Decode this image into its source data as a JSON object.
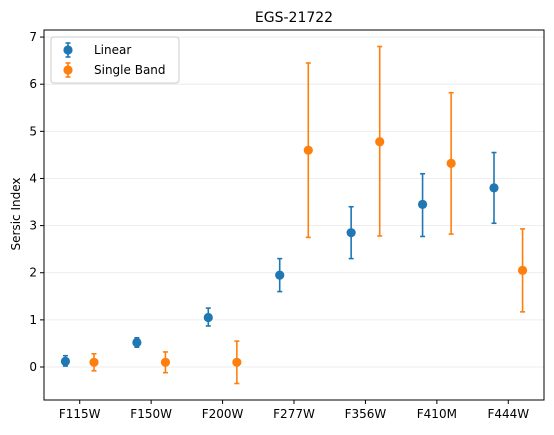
{
  "chart_data": {
    "type": "scatter",
    "title": "EGS-21722",
    "xlabel": "",
    "ylabel": "Sersic Index",
    "categories": [
      "F115W",
      "F150W",
      "F200W",
      "F277W",
      "F356W",
      "F410M",
      "F444W"
    ],
    "ylim": [
      -0.7,
      7.15
    ],
    "yticks": [
      0,
      1,
      2,
      3,
      4,
      5,
      6,
      7
    ],
    "grid": "horizontal",
    "legend": "top-left",
    "series": [
      {
        "name": "Linear",
        "color": "#1f77b4",
        "values": [
          0.12,
          0.52,
          1.05,
          1.95,
          2.85,
          3.45,
          3.8
        ],
        "err_low": [
          0.1,
          0.1,
          0.18,
          0.35,
          0.55,
          0.68,
          0.75
        ],
        "err_high": [
          0.12,
          0.1,
          0.2,
          0.35,
          0.55,
          0.65,
          0.75
        ]
      },
      {
        "name": "Single Band",
        "color": "#ff7f0e",
        "values": [
          0.1,
          0.1,
          0.1,
          4.6,
          4.78,
          4.32,
          2.05
        ],
        "err_low": [
          0.18,
          0.22,
          0.45,
          1.85,
          2.0,
          1.5,
          0.88
        ],
        "err_high": [
          0.18,
          0.22,
          0.45,
          1.85,
          2.02,
          1.5,
          0.88
        ]
      }
    ]
  }
}
